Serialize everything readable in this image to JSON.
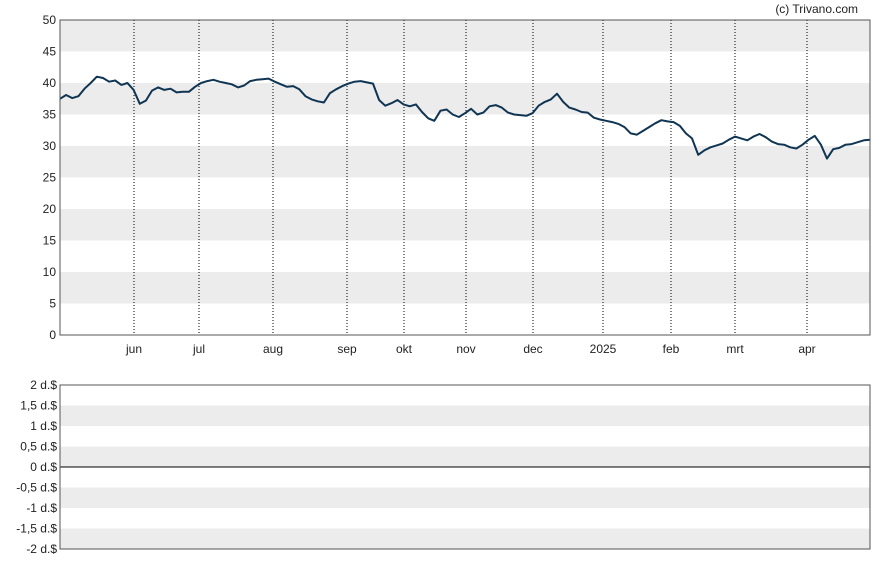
{
  "credit": "(c) Trivano.com",
  "colors": {
    "line": "#0f3553",
    "band": "#ececec",
    "frame": "#555555",
    "zero_line": "#000000",
    "vgrid": "#000000"
  },
  "chart_data": [
    {
      "type": "line",
      "title": "",
      "xlabel": "",
      "ylabel": "",
      "ylim": [
        0,
        50
      ],
      "yticks": [
        "0",
        "5",
        "10",
        "15",
        "20",
        "25",
        "30",
        "35",
        "40",
        "45",
        "50"
      ],
      "xticks": [
        "jun",
        "jul",
        "aug",
        "sep",
        "okt",
        "nov",
        "dec",
        "2025",
        "feb",
        "mrt",
        "apr"
      ],
      "grid": "alternating horizontal bands, dotted vertical lines at month ticks",
      "series": [
        {
          "values": [
            37.5,
            38.1,
            37.6,
            37.9,
            39.1,
            40.0,
            41.0,
            40.8,
            40.2,
            40.4,
            39.7,
            40.0,
            38.9,
            36.7,
            37.2,
            38.8,
            39.3,
            38.9,
            39.1,
            38.5,
            38.6,
            38.6,
            39.4,
            40.0,
            40.3,
            40.5,
            40.2,
            40.0,
            39.8,
            39.3,
            39.6,
            40.3,
            40.5,
            40.6,
            40.7,
            40.2,
            39.8,
            39.4,
            39.5,
            39.0,
            37.9,
            37.4,
            37.1,
            36.9,
            38.4,
            39.0,
            39.5,
            39.9,
            40.2,
            40.3,
            40.1,
            39.9,
            37.3,
            36.4,
            36.8,
            37.3,
            36.6,
            36.3,
            36.6,
            35.4,
            34.4,
            34.0,
            35.6,
            35.8,
            35.0,
            34.6,
            35.2,
            35.9,
            35.0,
            35.3,
            36.3,
            36.5,
            36.1,
            35.3,
            35.0,
            34.9,
            34.8,
            35.2,
            36.4,
            37.0,
            37.4,
            38.3,
            37.0,
            36.1,
            35.8,
            35.4,
            35.3,
            34.5,
            34.2,
            34.0,
            33.8,
            33.5,
            33.0,
            32.0,
            31.8,
            32.4,
            33.0,
            33.6,
            34.1,
            33.9,
            33.8,
            33.2,
            32.0,
            31.2,
            28.6,
            29.3,
            29.8,
            30.1,
            30.4,
            31.0,
            31.5,
            31.2,
            30.9,
            31.5,
            31.9,
            31.4,
            30.7,
            30.3,
            30.2,
            29.8,
            29.6,
            30.2,
            31.0,
            31.6,
            30.2,
            28.0,
            29.5,
            29.7,
            30.2,
            30.3,
            30.6,
            30.9,
            31.0
          ]
        }
      ]
    },
    {
      "type": "line",
      "title": "",
      "xlabel": "",
      "ylabel": "",
      "ylim": [
        -2,
        2
      ],
      "yticks": [
        "-2 d.$",
        "-1,5 d.$",
        "-1 d.$",
        "-0,5 d.$",
        "0 d.$",
        "0,5 d.$",
        "1 d.$",
        "1,5 d.$",
        "2 d.$"
      ],
      "series": []
    }
  ]
}
